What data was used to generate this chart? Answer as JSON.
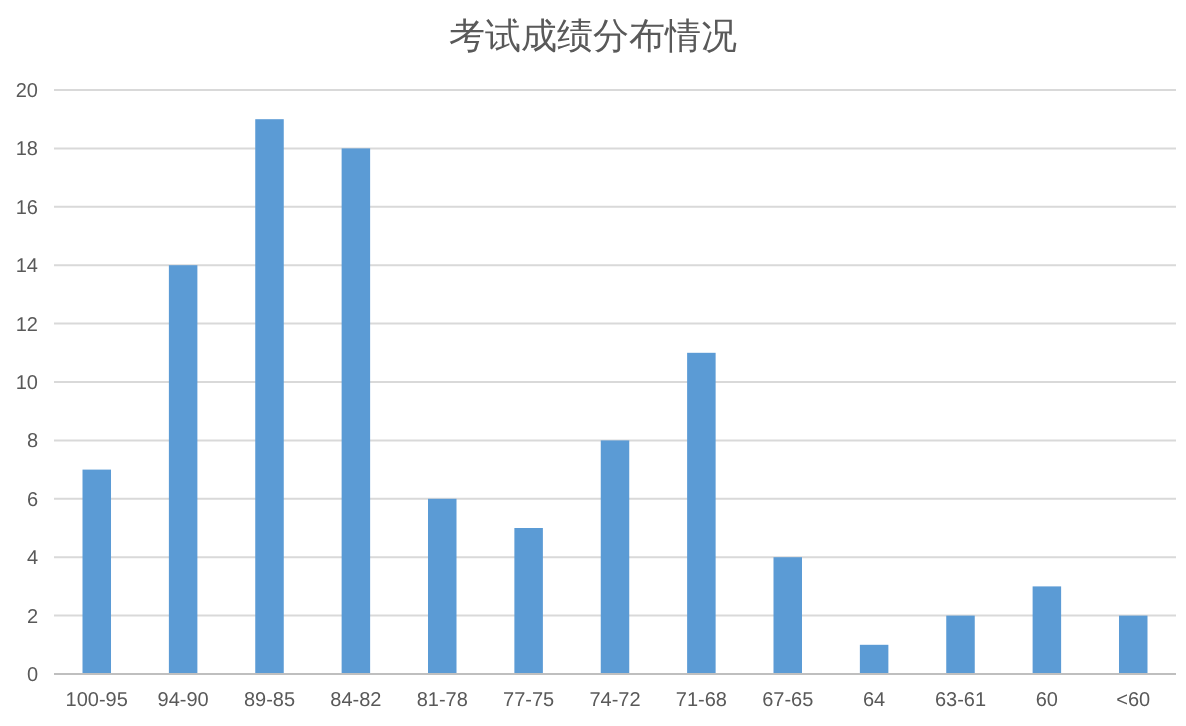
{
  "chart_data": {
    "type": "bar",
    "title": "考试成绩分布情况",
    "categories": [
      "100-95",
      "94-90",
      "89-85",
      "84-82",
      "81-78",
      "77-75",
      "74-72",
      "71-68",
      "67-65",
      "64",
      "63-61",
      "60",
      "<60"
    ],
    "values": [
      7,
      14,
      19,
      18,
      6,
      5,
      8,
      11,
      4,
      1,
      2,
      3,
      2
    ],
    "color": "#5b9bd5",
    "ylim": [
      0,
      20
    ],
    "yticks": [
      0,
      2,
      4,
      6,
      8,
      10,
      12,
      14,
      16,
      18,
      20
    ],
    "grid": "y"
  }
}
